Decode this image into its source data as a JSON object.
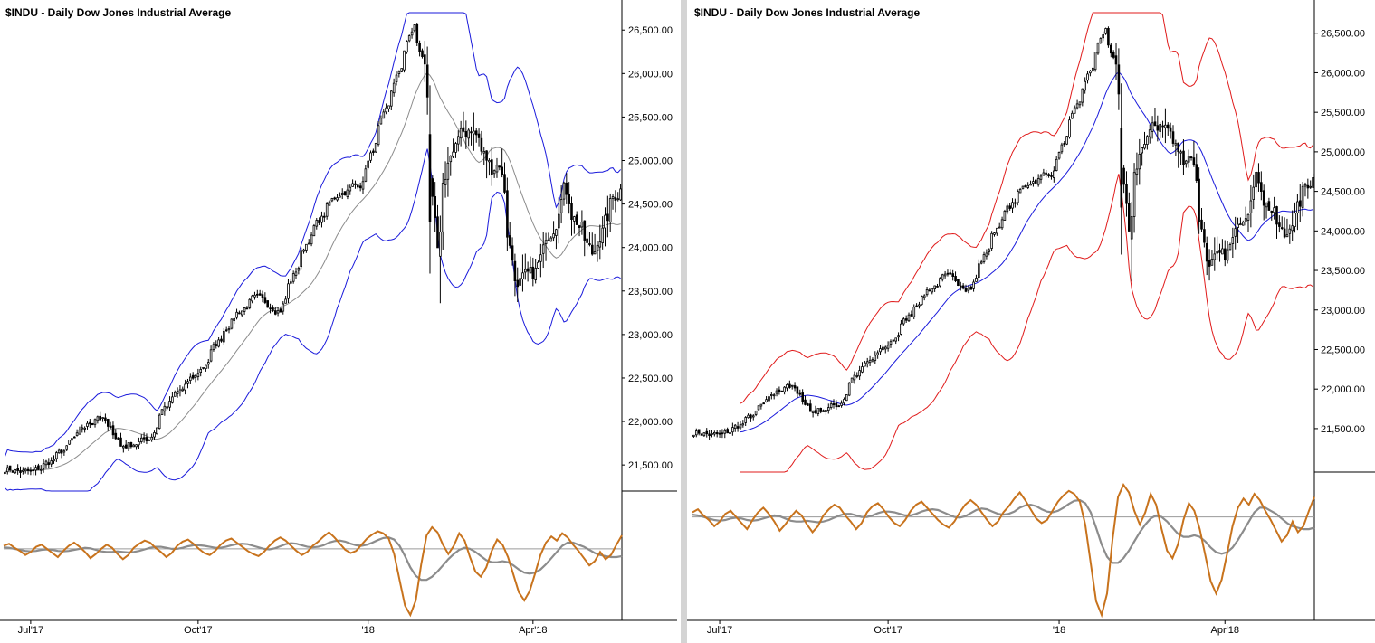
{
  "window": {
    "background": "#d4d4d4"
  },
  "charts_text": {
    "left_title": "$INDU - Daily  Dow Jones Industrial Average",
    "right_title": "$INDU - Daily  Dow Jones Industrial Average"
  },
  "colors": {
    "candle": "#000000",
    "blue_band": "#1a1adb",
    "gray_line": "#8c8c8c",
    "red_band": "#e01b1b",
    "oscillator": "#c8731d",
    "oscillator_signal": "#8c8c8c",
    "zero_line": "#9a9a9a"
  },
  "chart_data": [
    {
      "type": "candlestick",
      "panel": "left",
      "title": "$INDU - Daily  Dow Jones Industrial Average",
      "x_tick_labels": [
        "Jul'17",
        "Oct'17",
        "'18",
        "Apr'18"
      ],
      "x_tick_dates": [
        "2017-07-03",
        "2017-10-02",
        "2018-01-02",
        "2018-04-02"
      ],
      "x_range": [
        "2017-06-19",
        "2018-05-18"
      ],
      "y_tick_labels": [
        "21,500.00",
        "22,000.00",
        "22,500.00",
        "23,000.00",
        "23,500.00",
        "24,000.00",
        "24,500.00",
        "25,000.00",
        "25,500.00",
        "26,000.00",
        "26,500.00"
      ],
      "ylim": [
        21200,
        26700
      ],
      "price_axis": "right",
      "grid": false,
      "price_anchors": [
        [
          "2017-06-19",
          21460
        ],
        [
          "2017-07-03",
          21400
        ],
        [
          "2017-07-18",
          21620
        ],
        [
          "2017-08-08",
          22080
        ],
        [
          "2017-08-21",
          21720
        ],
        [
          "2017-09-05",
          21800
        ],
        [
          "2017-09-12",
          22150
        ],
        [
          "2017-10-02",
          22560
        ],
        [
          "2017-10-20",
          23200
        ],
        [
          "2017-10-31",
          23400
        ],
        [
          "2017-11-15",
          23300
        ],
        [
          "2017-11-30",
          24100
        ],
        [
          "2017-12-15",
          24600
        ],
        [
          "2017-12-29",
          24750
        ],
        [
          "2018-01-12",
          25600
        ],
        [
          "2018-01-26",
          26550
        ],
        [
          "2018-02-01",
          26100
        ],
        [
          "2018-02-08",
          23900
        ],
        [
          "2018-02-15",
          25100
        ],
        [
          "2018-02-27",
          25400
        ],
        [
          "2018-03-09",
          24900
        ],
        [
          "2018-03-14",
          25000
        ],
        [
          "2018-03-23",
          23550
        ],
        [
          "2018-04-02",
          23650
        ],
        [
          "2018-04-18",
          24700
        ],
        [
          "2018-05-03",
          23900
        ],
        [
          "2018-05-18",
          24700
        ]
      ],
      "overlays": [
        {
          "kind": "moving average",
          "color": "#8c8c8c"
        },
        {
          "kind": "upper band",
          "color": "#1a1adb"
        },
        {
          "kind": "lower band",
          "color": "#1a1adb"
        }
      ],
      "lower_pane": {
        "series": [
          {
            "color": "#c8731d",
            "values": [
              0.3,
              0.5,
              0.1,
              -0.2,
              -0.6,
              -0.3,
              0.2,
              0.4,
              0.0,
              -0.4,
              -0.8,
              -0.2,
              0.3,
              0.6,
              0.2,
              -0.3,
              -0.9,
              -0.5,
              0.0,
              0.4,
              0.1,
              -0.5,
              -1.0,
              -0.6,
              0.1,
              0.5,
              0.8,
              0.6,
              0.1,
              -0.3,
              -0.8,
              -0.4,
              0.3,
              0.7,
              0.9,
              0.5,
              0.0,
              -0.4,
              -0.6,
              -0.2,
              0.4,
              0.8,
              1.0,
              0.6,
              0.2,
              -0.2,
              -0.5,
              -0.7,
              -0.3,
              0.3,
              0.8,
              1.1,
              0.8,
              0.3,
              -0.2,
              -0.6,
              -0.3,
              0.3,
              0.7,
              1.2,
              1.6,
              1.1,
              0.5,
              -0.1,
              -0.4,
              -0.2,
              0.4,
              1.0,
              1.4,
              1.7,
              1.5,
              1.0,
              -0.5,
              -3.0,
              -5.5,
              -6.4,
              -5.0,
              -1.5,
              1.3,
              2.1,
              1.6,
              0.4,
              -0.5,
              0.3,
              1.5,
              0.8,
              -0.8,
              -2.2,
              -2.7,
              -1.8,
              -0.2,
              0.9,
              0.4,
              -0.8,
              -2.5,
              -4.2,
              -5.0,
              -4.1,
              -2.4,
              -0.6,
              0.6,
              1.2,
              0.8,
              1.5,
              1.1,
              0.4,
              -0.2,
              -0.9,
              -1.6,
              -1.2,
              -0.3,
              -1.0,
              -0.6,
              0.4,
              1.3
            ]
          },
          {
            "color": "#8c8c8c",
            "values": [
              0.15,
              0.1,
              0.0,
              -0.1,
              -0.2,
              -0.25,
              -0.2,
              -0.1,
              -0.05,
              -0.1,
              -0.2,
              -0.25,
              -0.2,
              -0.1,
              0.0,
              0.1,
              0.05,
              -0.1,
              -0.25,
              -0.3,
              -0.3,
              -0.25,
              -0.3,
              -0.35,
              -0.3,
              -0.2,
              -0.05,
              0.1,
              0.2,
              0.2,
              0.1,
              0.0,
              0.0,
              0.1,
              0.25,
              0.35,
              0.35,
              0.3,
              0.2,
              0.1,
              0.1,
              0.2,
              0.35,
              0.45,
              0.5,
              0.45,
              0.3,
              0.15,
              0.0,
              -0.05,
              0.05,
              0.25,
              0.45,
              0.55,
              0.5,
              0.35,
              0.2,
              0.15,
              0.2,
              0.35,
              0.6,
              0.75,
              0.8,
              0.7,
              0.5,
              0.35,
              0.3,
              0.4,
              0.6,
              0.85,
              1.05,
              1.1,
              0.9,
              0.3,
              -0.7,
              -1.8,
              -2.6,
              -3.0,
              -3.0,
              -2.7,
              -2.2,
              -1.6,
              -1.0,
              -0.5,
              -0.1,
              0.1,
              0.0,
              -0.3,
              -0.7,
              -1.1,
              -1.3,
              -1.3,
              -1.2,
              -1.3,
              -1.6,
              -2.0,
              -2.3,
              -2.4,
              -2.3,
              -2.0,
              -1.5,
              -0.9,
              -0.3,
              0.3,
              0.6,
              0.6,
              0.4,
              0.2,
              -0.1,
              -0.4,
              -0.6,
              -0.7,
              -0.8,
              -0.8,
              -0.7
            ]
          }
        ],
        "zero_line": 0
      }
    },
    {
      "type": "candlestick",
      "panel": "right",
      "title": "$INDU - Daily  Dow Jones Industrial Average",
      "x_tick_labels": [
        "Jul'17",
        "Oct'17",
        "'18",
        "Apr'18"
      ],
      "x_tick_dates": [
        "2017-07-03",
        "2017-10-02",
        "2018-01-02",
        "2018-04-02"
      ],
      "x_range": [
        "2017-06-19",
        "2018-05-18"
      ],
      "y_tick_labels": [
        "21,500.00",
        "22,000.00",
        "22,500.00",
        "23,000.00",
        "23,500.00",
        "24,000.00",
        "24,500.00",
        "25,000.00",
        "25,500.00",
        "26,000.00",
        "26,500.00"
      ],
      "ylim": [
        20950,
        26760
      ],
      "price_axis": "right",
      "grid": false,
      "price_anchors": [
        [
          "2017-06-19",
          21460
        ],
        [
          "2017-07-03",
          21400
        ],
        [
          "2017-07-18",
          21620
        ],
        [
          "2017-08-08",
          22080
        ],
        [
          "2017-08-21",
          21720
        ],
        [
          "2017-09-05",
          21800
        ],
        [
          "2017-09-12",
          22150
        ],
        [
          "2017-10-02",
          22560
        ],
        [
          "2017-10-20",
          23200
        ],
        [
          "2017-10-31",
          23400
        ],
        [
          "2017-11-15",
          23300
        ],
        [
          "2017-11-30",
          24100
        ],
        [
          "2017-12-15",
          24600
        ],
        [
          "2017-12-29",
          24750
        ],
        [
          "2018-01-12",
          25600
        ],
        [
          "2018-01-26",
          26550
        ],
        [
          "2018-02-01",
          26100
        ],
        [
          "2018-02-08",
          23900
        ],
        [
          "2018-02-15",
          25100
        ],
        [
          "2018-02-27",
          25400
        ],
        [
          "2018-03-09",
          24900
        ],
        [
          "2018-03-14",
          25000
        ],
        [
          "2018-03-23",
          23550
        ],
        [
          "2018-04-02",
          23650
        ],
        [
          "2018-04-18",
          24700
        ],
        [
          "2018-05-03",
          23900
        ],
        [
          "2018-05-18",
          24700
        ]
      ],
      "overlays": [
        {
          "kind": "moving average",
          "color": "#1a1adb"
        },
        {
          "kind": "upper band",
          "color": "#e01b1b"
        },
        {
          "kind": "lower band",
          "color": "#e01b1b"
        }
      ],
      "lower_pane": {
        "series": [
          {
            "color": "#c8731d",
            "values": [
              0.3,
              0.5,
              0.1,
              -0.2,
              -0.6,
              -0.3,
              0.2,
              0.4,
              0.0,
              -0.4,
              -0.8,
              -0.2,
              0.3,
              0.6,
              0.2,
              -0.3,
              -0.9,
              -0.5,
              0.0,
              0.4,
              0.1,
              -0.5,
              -1.0,
              -0.6,
              0.1,
              0.5,
              0.8,
              0.6,
              0.1,
              -0.3,
              -0.8,
              -0.4,
              0.3,
              0.7,
              0.9,
              0.5,
              0.0,
              -0.4,
              -0.6,
              -0.2,
              0.4,
              0.8,
              1.0,
              0.6,
              0.2,
              -0.2,
              -0.5,
              -0.7,
              -0.3,
              0.3,
              0.8,
              1.1,
              0.8,
              0.3,
              -0.2,
              -0.6,
              -0.3,
              0.3,
              0.7,
              1.2,
              1.6,
              1.1,
              0.5,
              -0.1,
              -0.4,
              -0.2,
              0.4,
              1.0,
              1.4,
              1.7,
              1.5,
              1.0,
              -0.5,
              -3.0,
              -5.5,
              -6.4,
              -5.0,
              -1.5,
              1.3,
              2.1,
              1.6,
              0.4,
              -0.5,
              0.3,
              1.5,
              0.8,
              -0.8,
              -2.2,
              -2.7,
              -1.8,
              -0.2,
              0.9,
              0.4,
              -0.8,
              -2.5,
              -4.2,
              -5.0,
              -4.1,
              -2.4,
              -0.6,
              0.6,
              1.2,
              0.8,
              1.5,
              1.1,
              0.4,
              -0.2,
              -0.9,
              -1.6,
              -1.2,
              -0.3,
              -1.0,
              -0.6,
              0.4,
              1.3
            ]
          },
          {
            "color": "#8c8c8c",
            "values": [
              0.15,
              0.1,
              0.0,
              -0.1,
              -0.2,
              -0.25,
              -0.2,
              -0.1,
              -0.05,
              -0.1,
              -0.2,
              -0.25,
              -0.2,
              -0.1,
              0.0,
              0.1,
              0.05,
              -0.1,
              -0.25,
              -0.3,
              -0.3,
              -0.25,
              -0.3,
              -0.35,
              -0.3,
              -0.2,
              -0.05,
              0.1,
              0.2,
              0.2,
              0.1,
              0.0,
              0.0,
              0.1,
              0.25,
              0.35,
              0.35,
              0.3,
              0.2,
              0.1,
              0.1,
              0.2,
              0.35,
              0.45,
              0.5,
              0.45,
              0.3,
              0.15,
              0.0,
              -0.05,
              0.05,
              0.25,
              0.45,
              0.55,
              0.5,
              0.35,
              0.2,
              0.15,
              0.2,
              0.35,
              0.6,
              0.75,
              0.8,
              0.7,
              0.5,
              0.35,
              0.3,
              0.4,
              0.6,
              0.85,
              1.05,
              1.1,
              0.9,
              0.3,
              -0.7,
              -1.8,
              -2.6,
              -3.0,
              -3.0,
              -2.7,
              -2.2,
              -1.6,
              -1.0,
              -0.5,
              -0.1,
              0.1,
              0.0,
              -0.3,
              -0.7,
              -1.1,
              -1.3,
              -1.3,
              -1.2,
              -1.3,
              -1.6,
              -2.0,
              -2.3,
              -2.4,
              -2.3,
              -2.0,
              -1.5,
              -0.9,
              -0.3,
              0.3,
              0.6,
              0.6,
              0.4,
              0.2,
              -0.1,
              -0.4,
              -0.6,
              -0.7,
              -0.8,
              -0.8,
              -0.7
            ]
          }
        ],
        "zero_line": 0
      }
    }
  ]
}
